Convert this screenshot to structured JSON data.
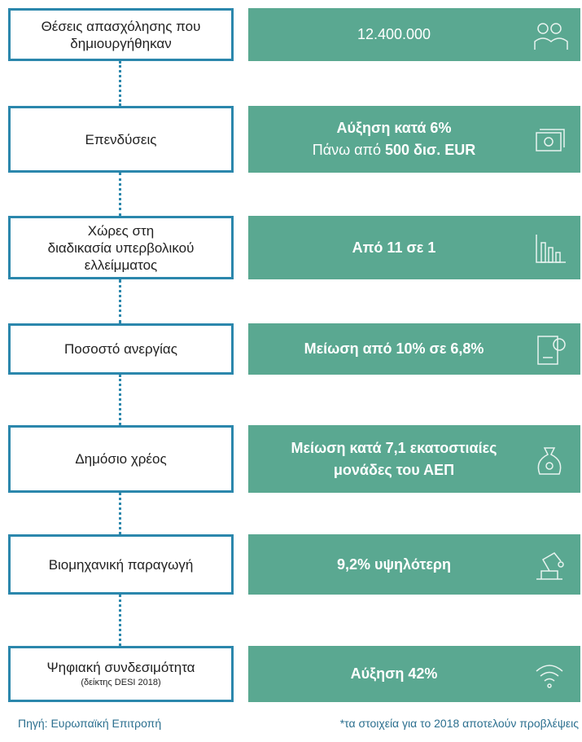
{
  "rows": [
    {
      "label": [
        "Θέσεις απασχόλησης που",
        "δημιουργήθηκαν"
      ],
      "value": [
        [
          {
            "text": "12.400.000",
            "bold": false
          }
        ]
      ]
    },
    {
      "label": [
        "Επενδύσεις"
      ],
      "value": [
        [
          {
            "text": "Αύξηση κατά 6%",
            "bold": true
          }
        ],
        [
          {
            "text": "Πάνω από",
            "bold": false
          },
          {
            "text": "500 δισ. EUR",
            "bold": true
          }
        ]
      ]
    },
    {
      "label": [
        "Χώρες στη",
        "διαδικασία υπερβολικού",
        "ελλείμματος"
      ],
      "value": [
        [
          {
            "text": "Από 11 σε 1",
            "bold": true
          }
        ]
      ]
    },
    {
      "label": [
        "Ποσοστό ανεργίας"
      ],
      "value": [
        [
          {
            "text": "Μείωση από 10% σε 6,8%",
            "bold": true
          }
        ]
      ]
    },
    {
      "label": [
        "Δημόσιο χρέος"
      ],
      "value": [
        [
          {
            "text": "Μείωση κατά 7,1 εκατοστιαίες",
            "bold": true
          }
        ],
        [
          {
            "text": "μονάδες του ΑΕΠ",
            "bold": true
          }
        ]
      ]
    },
    {
      "label": [
        "Βιομηχανική παραγωγή"
      ],
      "value": [
        [
          {
            "text": "9,2% υψηλότερη",
            "bold": true
          }
        ]
      ]
    },
    {
      "label": [
        "Ψηφιακή συνδεσιμότητα"
      ],
      "note": "(δείκτης DESI 2018)",
      "value": [
        [
          {
            "text": "Αύξηση 42%",
            "bold": true
          }
        ]
      ]
    }
  ],
  "footer": {
    "source": "Πηγή: Ευρωπαϊκή Επιτροπή",
    "note": "*τα στοιχεία για το 2018 αποτελούν προβλέψεις"
  }
}
